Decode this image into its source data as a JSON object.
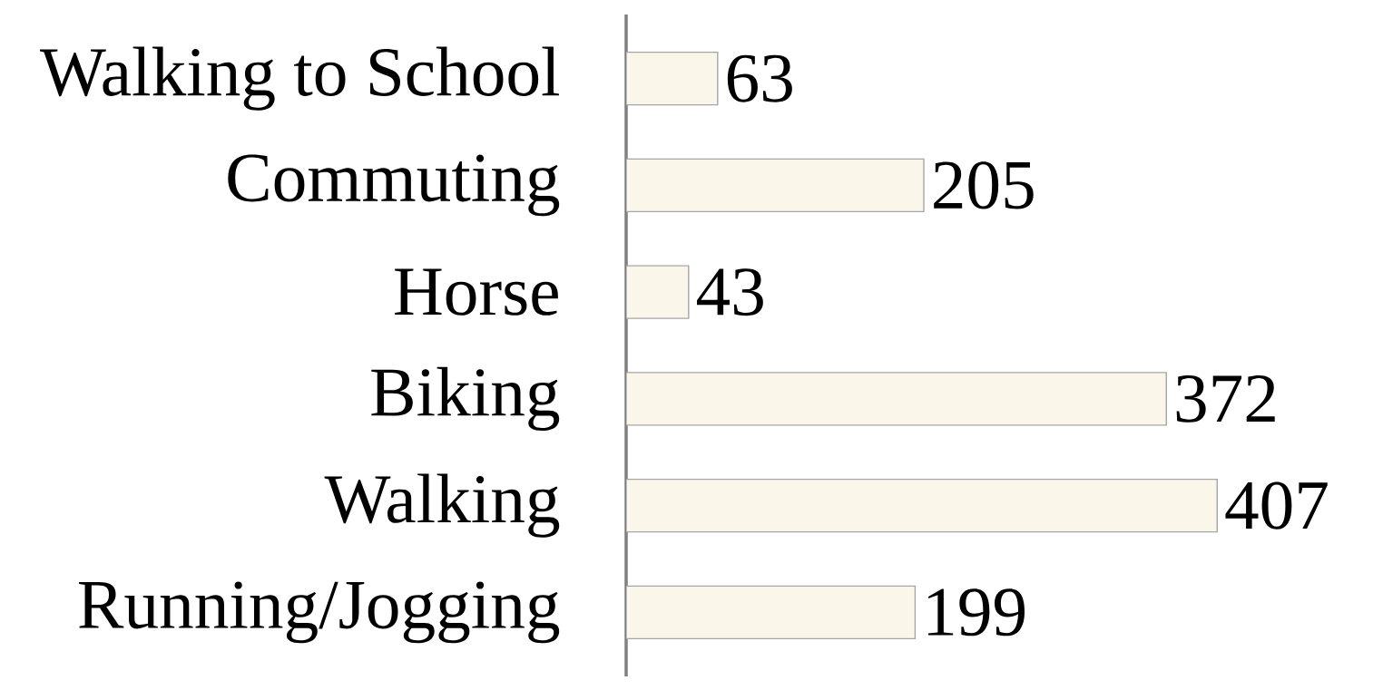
{
  "chart_data": {
    "type": "bar",
    "orientation": "horizontal",
    "categories": [
      "Walking to School",
      "Commuting",
      "Horse",
      "Biking",
      "Walking",
      "Running/Jogging"
    ],
    "values": [
      63,
      205,
      43,
      372,
      407,
      199
    ],
    "color": "#faf6ea",
    "data_labels": true,
    "tick_labels": "y",
    "grid": false
  }
}
